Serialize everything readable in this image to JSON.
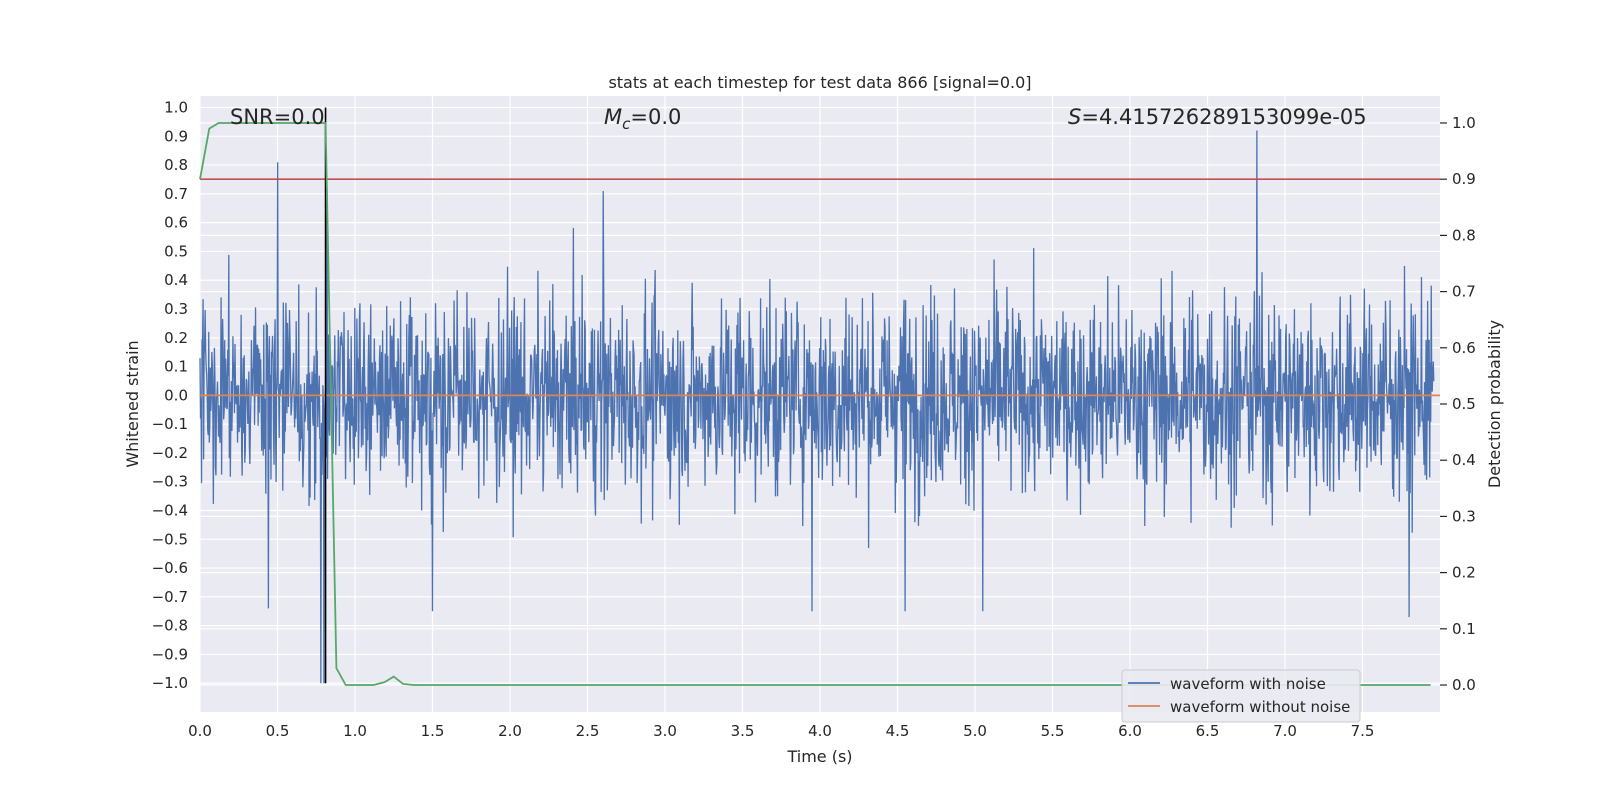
{
  "chart_data": {
    "type": "line",
    "title": "stats at each timestep for test data 866 [signal=0.0]",
    "xlabel": "Time (s)",
    "ylabel_left": "Whitened strain",
    "ylabel_right": "Detection probability",
    "xlim": [
      0.0,
      8.0
    ],
    "ylim_left": [
      -1.1,
      1.04
    ],
    "ylim_right": [
      -0.048,
      1.048
    ],
    "x_ticks": [
      0.0,
      0.5,
      1.0,
      1.5,
      2.0,
      2.5,
      3.0,
      3.5,
      4.0,
      4.5,
      5.0,
      5.5,
      6.0,
      6.5,
      7.0,
      7.5
    ],
    "x_tick_labels": [
      "0.0",
      "0.5",
      "1.0",
      "1.5",
      "2.0",
      "2.5",
      "3.0",
      "3.5",
      "4.0",
      "4.5",
      "5.0",
      "5.5",
      "6.0",
      "6.5",
      "7.0",
      "7.5"
    ],
    "y_left_ticks": [
      1.0,
      0.9,
      0.8,
      0.7,
      0.6,
      0.5,
      0.4,
      0.3,
      0.2,
      0.1,
      0.0,
      -0.1,
      -0.2,
      -0.3,
      -0.4,
      -0.5,
      -0.6,
      -0.7,
      -0.8,
      -0.9,
      -1.0
    ],
    "y_left_tick_labels": [
      "1.0",
      "0.9",
      "0.8",
      "0.7",
      "0.6",
      "0.5",
      "0.4",
      "0.3",
      "0.2",
      "0.1",
      "0.0",
      "−0.1",
      "−0.2",
      "−0.3",
      "−0.4",
      "−0.5",
      "−0.6",
      "−0.7",
      "−0.8",
      "−0.9",
      "−1.0"
    ],
    "y_right_ticks": [
      1.0,
      0.9,
      0.8,
      0.7,
      0.6,
      0.5,
      0.4,
      0.3,
      0.2,
      0.1,
      0.0
    ],
    "y_right_tick_labels": [
      "1.0",
      "0.9",
      "0.8",
      "0.7",
      "0.6",
      "0.5",
      "0.4",
      "0.3",
      "0.2",
      "0.1",
      "0.0"
    ],
    "annotations": {
      "snr": "SNR=0.0",
      "mc_symbol": "M",
      "mc_subscript": "c",
      "mc_value": "=0.0",
      "s_symbol": "S",
      "s_value": "=4.415726289153099e-05"
    },
    "legend": {
      "placement": "lower-right",
      "entries": [
        "waveform with noise",
        "waveform without noise"
      ]
    },
    "colors": {
      "waveform_with_noise": "#4c72b0",
      "waveform_without_noise": "#dd8452",
      "detection_probability": "#55a868",
      "threshold": "#c44e52",
      "marker": "#000000",
      "plot_bg": "#eaeaf2",
      "grid": "#ffffff"
    },
    "noise_envelope": {
      "typical_max": 0.45,
      "typical_min": -0.45,
      "spikes": [
        {
          "x": 0.5,
          "y": 0.81
        },
        {
          "x": 0.78,
          "y": -1.0
        },
        {
          "x": 0.82,
          "y": 0.72
        },
        {
          "x": 0.8,
          "y": -1.0
        },
        {
          "x": 0.44,
          "y": -0.74
        },
        {
          "x": 1.5,
          "y": -0.75
        },
        {
          "x": 2.6,
          "y": 0.71
        },
        {
          "x": 3.95,
          "y": -0.75
        },
        {
          "x": 4.55,
          "y": -0.75
        },
        {
          "x": 5.05,
          "y": -0.75
        },
        {
          "x": 6.82,
          "y": 0.92
        },
        {
          "x": 7.8,
          "y": -0.77
        }
      ]
    },
    "waveform_without_noise": {
      "x": [
        0.0,
        8.0
      ],
      "y": [
        0.0,
        0.0
      ]
    },
    "threshold_line": {
      "x": [
        0.0,
        8.0
      ],
      "y": 0.9
    },
    "marker_line": {
      "x": 0.81
    },
    "detection_probability": {
      "x": [
        0.0,
        0.06,
        0.12,
        0.18,
        0.25,
        0.4,
        0.6,
        0.75,
        0.81,
        0.88,
        0.94,
        1.0,
        1.12,
        1.19,
        1.25,
        1.31,
        1.38,
        1.5,
        2.0,
        3.0,
        4.0,
        5.0,
        6.0,
        7.0,
        7.94
      ],
      "y": [
        0.9,
        0.99,
        1.0,
        1.0,
        1.0,
        1.0,
        1.0,
        1.0,
        1.0,
        0.03,
        0.0,
        0.0,
        0.0,
        0.005,
        0.015,
        0.002,
        0.0,
        0.0,
        0.0,
        0.0,
        0.0,
        0.0,
        0.0,
        0.0,
        0.0
      ]
    }
  }
}
